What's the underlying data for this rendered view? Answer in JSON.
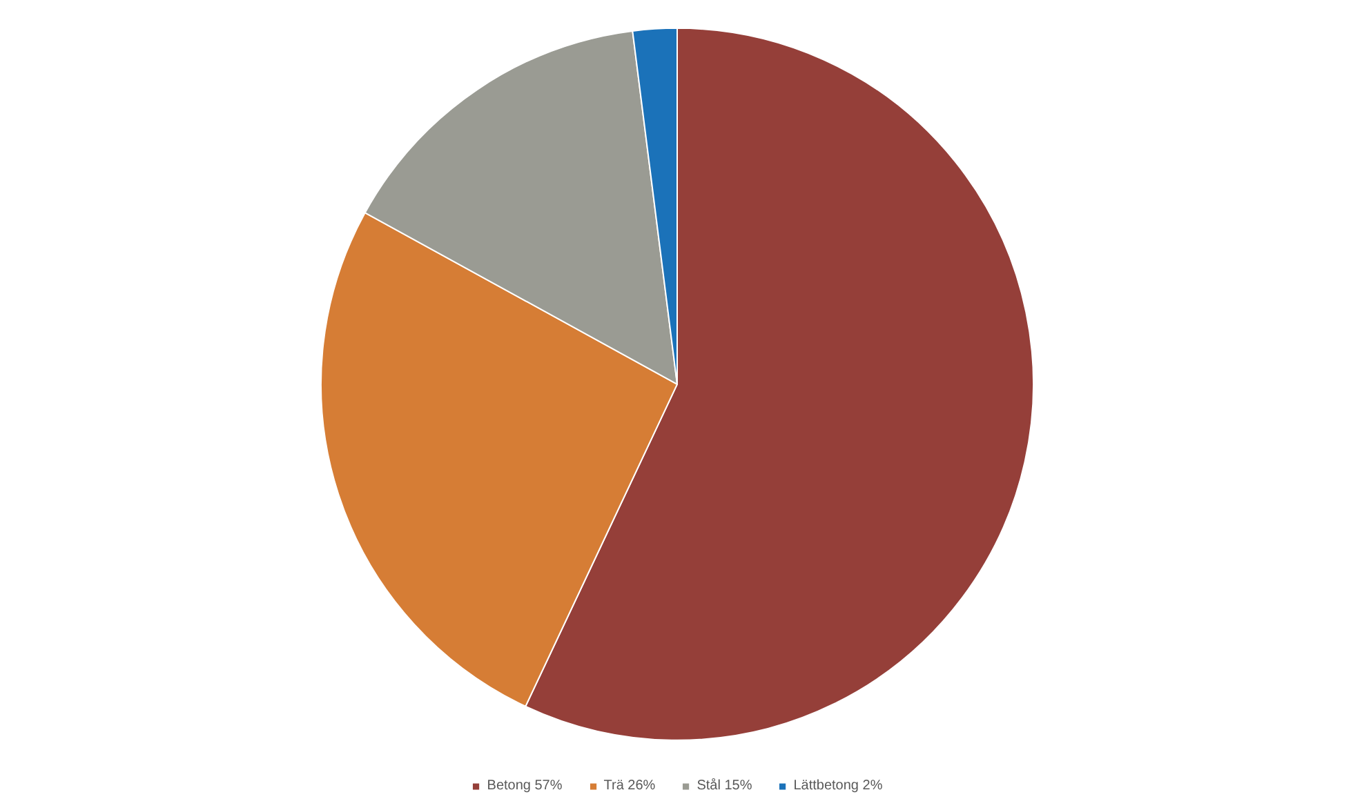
{
  "chart_data": {
    "type": "pie",
    "categories": [
      "Betong 57%",
      "Trä 26%",
      "Stål 15%",
      "Lättbetong 2%"
    ],
    "values": [
      57,
      26,
      15,
      2
    ],
    "colors": [
      "#953f39",
      "#d67d35",
      "#9a9b93",
      "#1b72b9"
    ],
    "legend": "bottom"
  }
}
